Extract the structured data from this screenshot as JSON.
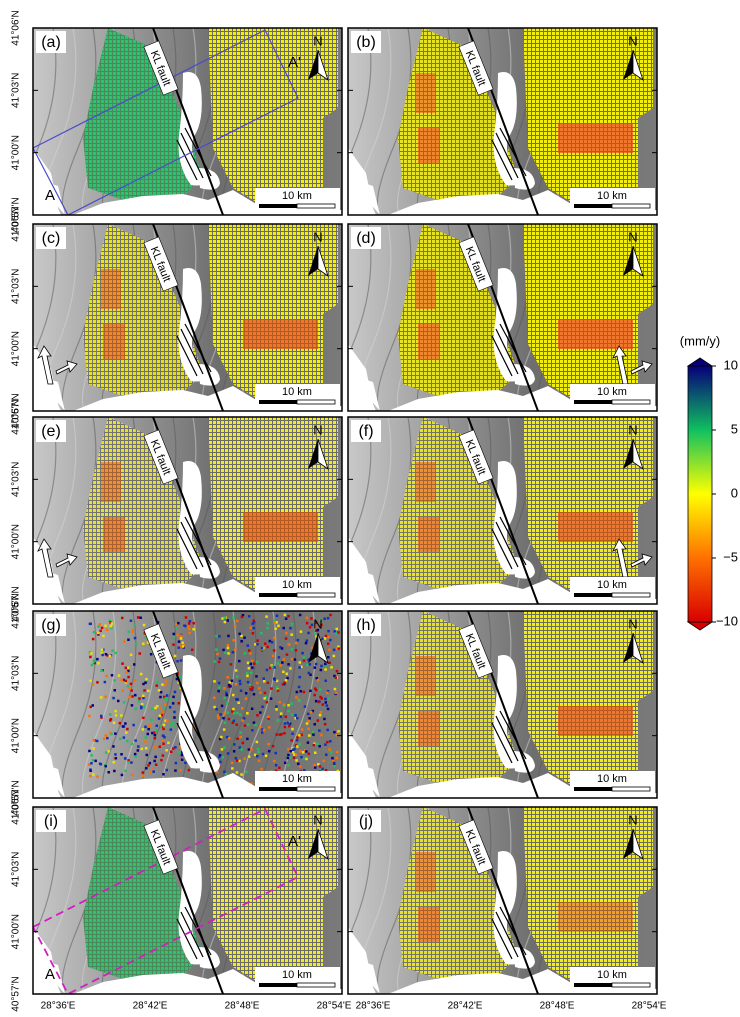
{
  "colorbar": {
    "label": "(mm/y)",
    "range": [
      -10,
      10
    ],
    "ticks": [
      10,
      5,
      0,
      {
        "value": -5,
        "label": "−5"
      },
      {
        "value": -10,
        "label": "−10"
      }
    ]
  },
  "latitude_labels": [
    "41°06'N",
    "41°03'N",
    "41°00'N",
    "40°57'N"
  ],
  "longitude_labels": [
    "28°36'E",
    "28°42'E",
    "28°48'E",
    "28°54'E"
  ],
  "panels": [
    {
      "label": "(a)",
      "fault": "KL fault",
      "north": "N",
      "scale": "10 km",
      "profile": [
        "A",
        "A'"
      ]
    },
    {
      "label": "(b)",
      "fault": "KL fault",
      "north": "N",
      "scale": "10 km"
    },
    {
      "label": "(c)",
      "fault": "KL fault",
      "north": "N",
      "scale": "10 km"
    },
    {
      "label": "(d)",
      "fault": "KL fault",
      "north": "N",
      "scale": "10 km"
    },
    {
      "label": "(e)",
      "fault": "KL fault",
      "north": "N",
      "scale": "10 km"
    },
    {
      "label": "(f)",
      "fault": "KL fault",
      "north": "N",
      "scale": "10 km"
    },
    {
      "label": "(g)",
      "fault": "KL fault",
      "north": "N",
      "scale": "10 km"
    },
    {
      "label": "(h)",
      "fault": "KL fault",
      "north": "N",
      "scale": "10 km"
    },
    {
      "label": "(i)",
      "fault": "KL fault",
      "north": "N",
      "scale": "10 km",
      "profile": [
        "A",
        "A'"
      ]
    },
    {
      "label": "(j)",
      "fault": "KL fault",
      "north": "N",
      "scale": "10 km"
    }
  ]
}
